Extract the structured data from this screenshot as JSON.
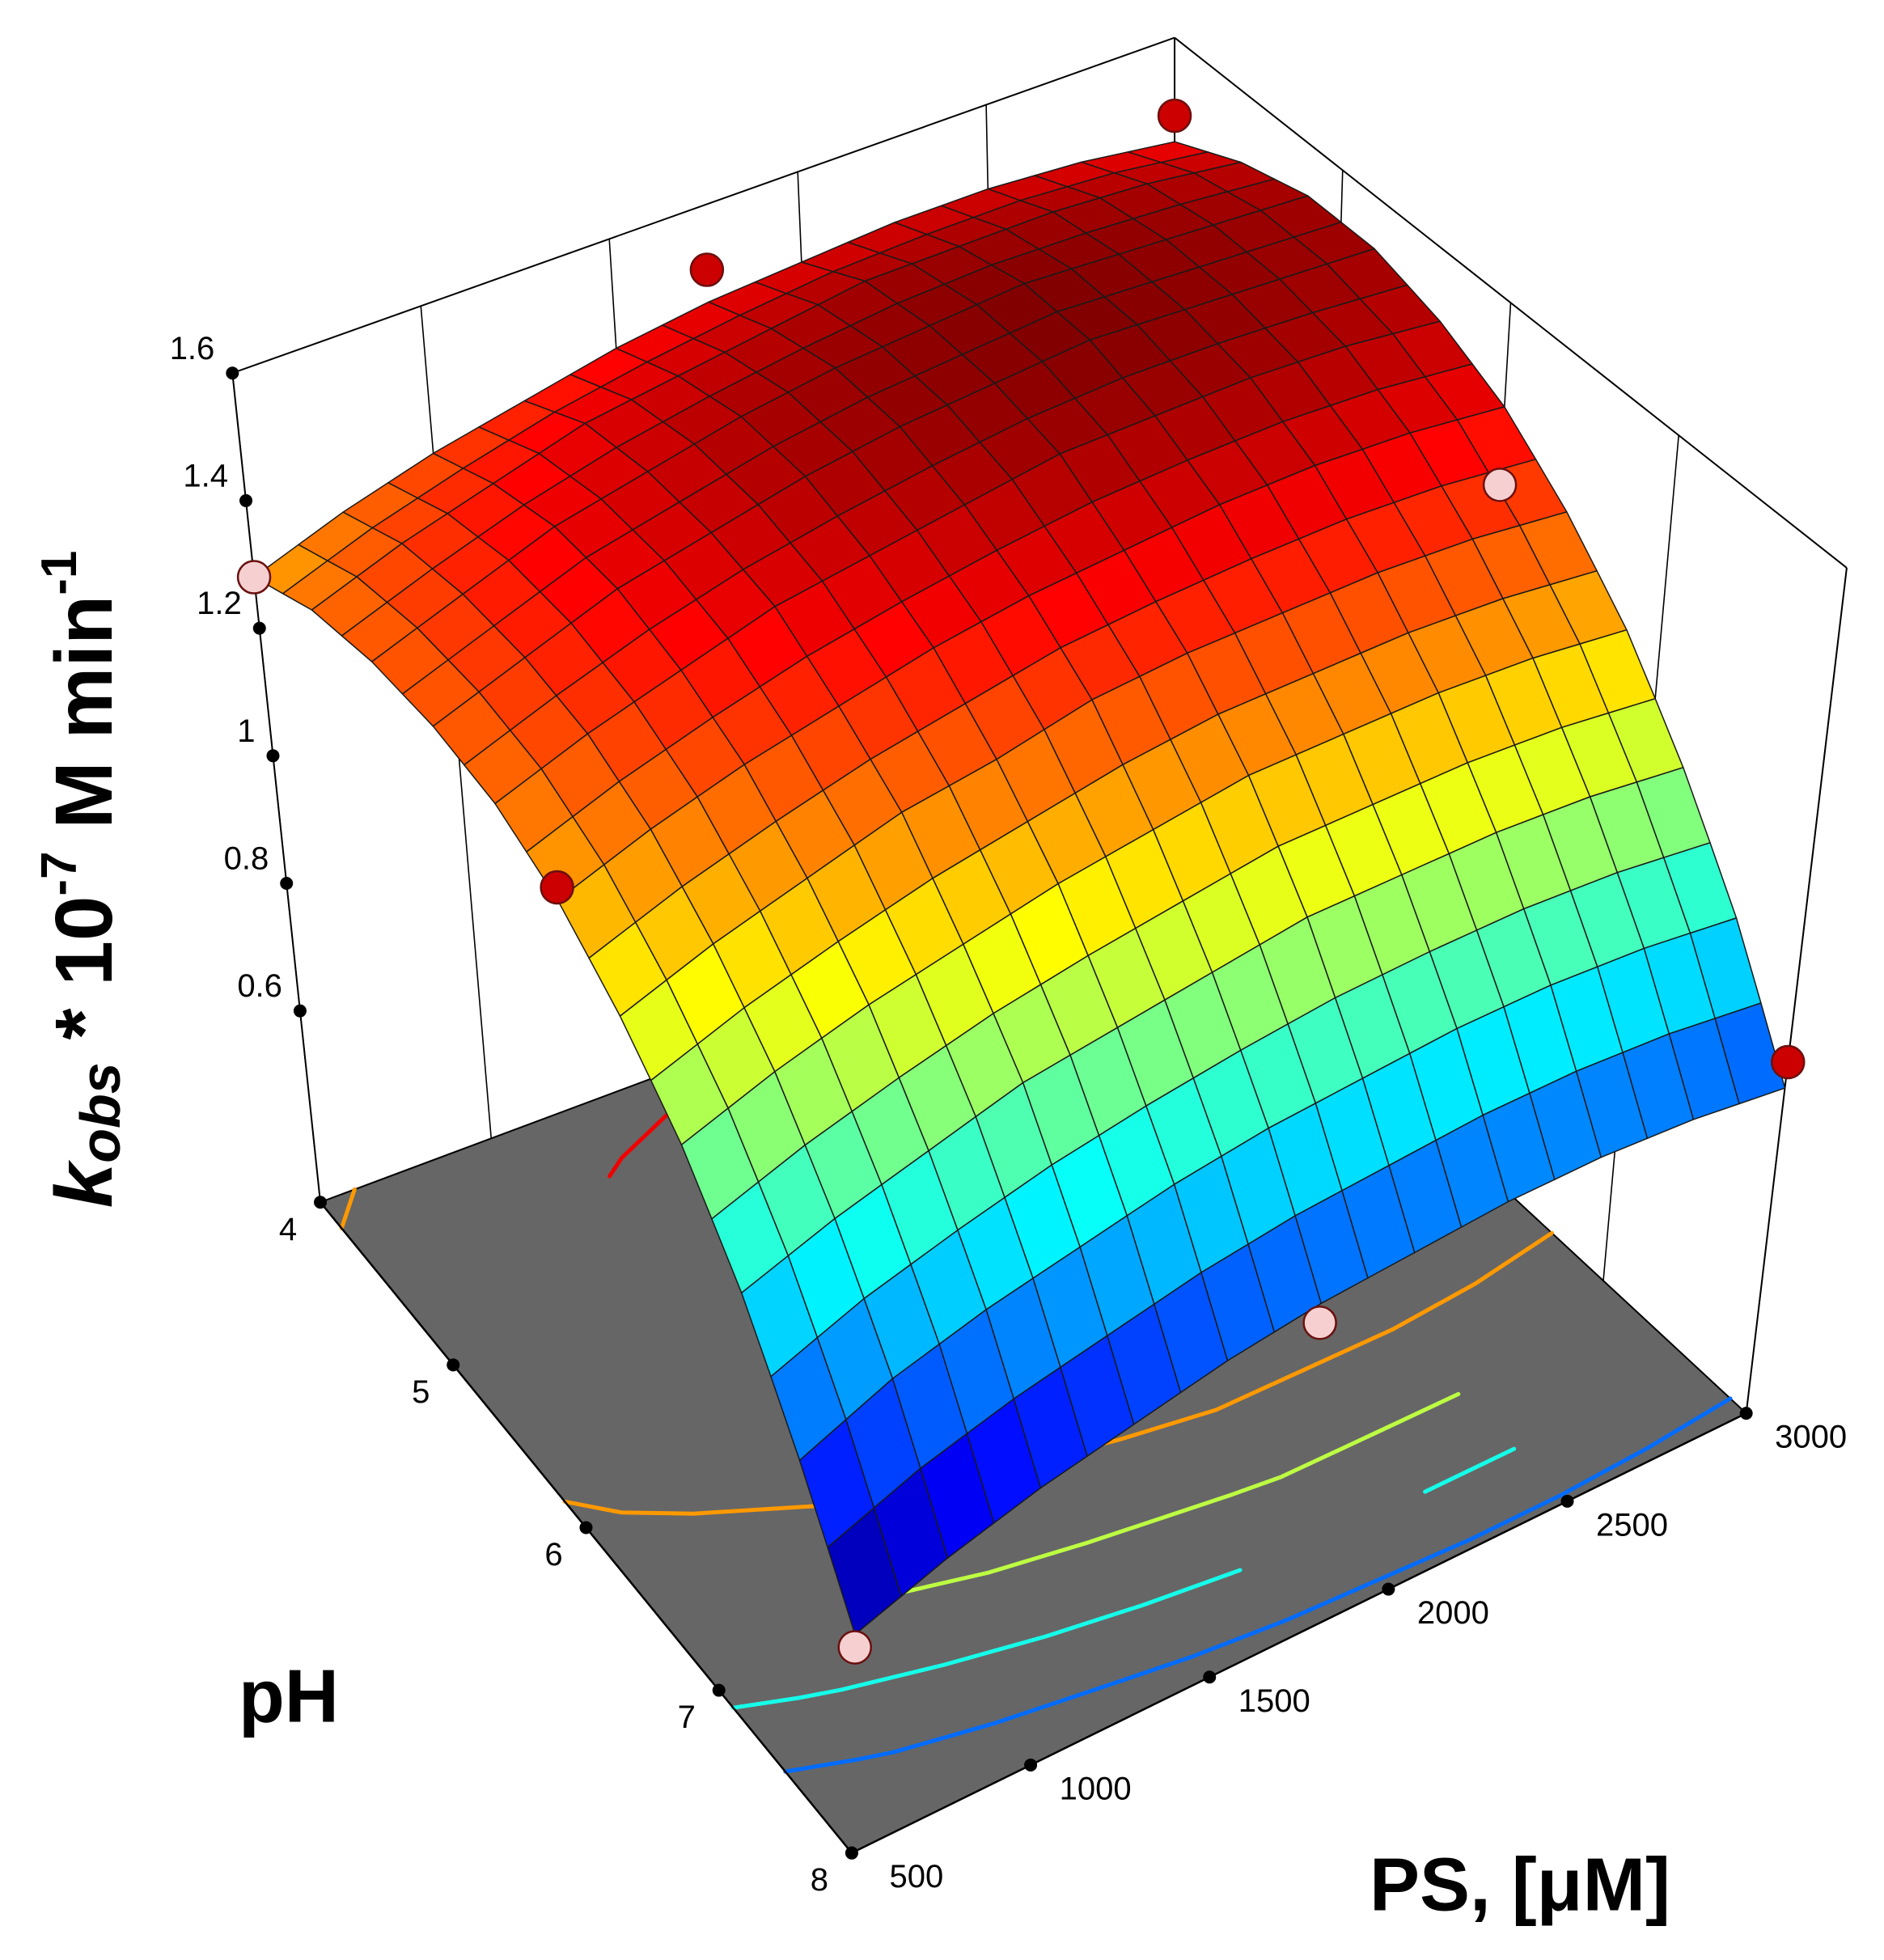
{
  "chart_data": {
    "type": "surface3d",
    "xlabel": "PS, [μM]",
    "ylabel": "pH",
    "zlabel": [
      {
        "text": "k",
        "style": "italic"
      },
      {
        "text": "obs",
        "style": "italic-sub"
      },
      {
        "text": " * 10"
      },
      {
        "text": "-7",
        "style": "sup"
      },
      {
        "text": " M min"
      },
      {
        "text": "-1",
        "style": "sup"
      }
    ],
    "xlim": [
      500,
      3000
    ],
    "xticks": [
      500,
      1000,
      1500,
      2000,
      2500,
      3000
    ],
    "ylim": [
      4,
      8
    ],
    "yticks": [
      4,
      5,
      6,
      7,
      8
    ],
    "zlim": [
      0.3,
      1.6
    ],
    "zticks": [
      0.6,
      0.8,
      1,
      1.2,
      1.4,
      1.6
    ],
    "colormap": "jet",
    "floor_color": "#666666",
    "contour_levels": [
      1.45,
      1.3,
      1.15,
      1.0,
      0.85
    ],
    "x": [
      500,
      750,
      1000,
      1250,
      1500,
      1750,
      2000,
      2250,
      2500,
      2750,
      3000
    ],
    "y": [
      4,
      4.4,
      4.8,
      5.2,
      5.6,
      6,
      6.4,
      6.8,
      7.2,
      7.6,
      8
    ],
    "z": [
      [
        1.28,
        1.33,
        1.37,
        1.4,
        1.43,
        1.45,
        1.46,
        1.47,
        1.47,
        1.46,
        1.44
      ],
      [
        1.33,
        1.38,
        1.42,
        1.46,
        1.48,
        1.5,
        1.52,
        1.52,
        1.52,
        1.51,
        1.49
      ],
      [
        1.35,
        1.4,
        1.45,
        1.48,
        1.51,
        1.53,
        1.54,
        1.55,
        1.54,
        1.53,
        1.52
      ],
      [
        1.35,
        1.4,
        1.45,
        1.48,
        1.51,
        1.53,
        1.54,
        1.55,
        1.54,
        1.53,
        1.52
      ],
      [
        1.33,
        1.38,
        1.42,
        1.46,
        1.48,
        1.5,
        1.52,
        1.52,
        1.52,
        1.51,
        1.49
      ],
      [
        1.28,
        1.33,
        1.37,
        1.4,
        1.43,
        1.45,
        1.46,
        1.47,
        1.47,
        1.46,
        1.44
      ],
      [
        1.2,
        1.25,
        1.29,
        1.33,
        1.35,
        1.38,
        1.39,
        1.39,
        1.39,
        1.38,
        1.36
      ],
      [
        1.1,
        1.15,
        1.19,
        1.22,
        1.25,
        1.27,
        1.29,
        1.29,
        1.29,
        1.28,
        1.26
      ],
      [
        0.97,
        1.02,
        1.06,
        1.1,
        1.12,
        1.14,
        1.16,
        1.16,
        1.16,
        1.15,
        1.13
      ],
      [
        0.81,
        0.87,
        0.91,
        0.94,
        0.97,
        0.99,
        1.0,
        1.01,
        1.01,
        1.0,
        0.98
      ],
      [
        0.64,
        0.69,
        0.73,
        0.76,
        0.79,
        0.81,
        0.82,
        0.83,
        0.83,
        0.82,
        0.8
      ]
    ],
    "points": {
      "x": [
        500,
        1750,
        3000,
        500,
        500,
        3000,
        3000,
        1750
      ],
      "y": [
        4,
        4,
        4,
        6,
        8,
        8,
        6,
        8
      ],
      "z": [
        1.28,
        1.5,
        1.48,
        1.3,
        0.62,
        0.84,
        1.32,
        0.78
      ],
      "colors": [
        "#f6d0d0",
        "#cc0000",
        "#cc0000",
        "#cc0000",
        "#f6d0d0",
        "#cc0000",
        "#f6d0d0",
        "#f6d0d0"
      ]
    }
  }
}
